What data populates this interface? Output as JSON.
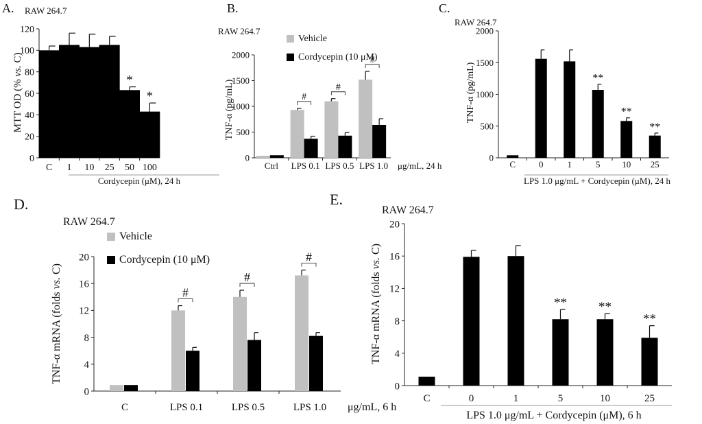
{
  "chart_data": [
    {
      "panel_label": "A.",
      "cell_line": "RAW 264.7",
      "type": "bar",
      "ylabel": [
        "MTT OD (% ",
        "vs.",
        " C)"
      ],
      "ylim": [
        0,
        120
      ],
      "yticks": [
        0,
        20,
        40,
        60,
        80,
        100,
        120
      ],
      "categories": [
        "C",
        "1",
        "10",
        "25",
        "50",
        "100"
      ],
      "series": [
        {
          "color": "#000000",
          "values": [
            100,
            105,
            103,
            105,
            63,
            43
          ],
          "errors": [
            4,
            11,
            12,
            8,
            3,
            8
          ]
        }
      ],
      "annotations": [
        "",
        "",
        "",
        "",
        "*",
        "*"
      ],
      "group_label": "Cordycepin (μM), 24 h",
      "group_start": 1
    },
    {
      "panel_label": "B.",
      "cell_line": "RAW 264.7",
      "type": "bar",
      "ylabel": [
        "TNF-α (pg/mL)"
      ],
      "ylim": [
        0,
        2000
      ],
      "yticks": [
        0,
        500,
        1000,
        1500,
        2000
      ],
      "categories": [
        "Ctrl",
        "LPS 0.1",
        "LPS 0.5",
        "LPS 1.0"
      ],
      "unit_label": "μg/mL, 24 h",
      "series": [
        {
          "name": "Vehicle",
          "color": "#c0c0c0",
          "values": [
            40,
            930,
            1100,
            1520
          ],
          "errors": [
            0,
            30,
            50,
            160
          ]
        },
        {
          "name": "Cordycepin (10 μM)",
          "color": "#000000",
          "values": [
            50,
            370,
            430,
            640
          ],
          "errors": [
            0,
            50,
            60,
            120
          ]
        }
      ],
      "annotations": [
        "",
        "#",
        "#",
        "#"
      ]
    },
    {
      "panel_label": "C.",
      "cell_line": "RAW 264.7",
      "type": "bar",
      "ylabel": [
        "TNF-α (pg/mL)"
      ],
      "ylim": [
        0,
        2000
      ],
      "yticks": [
        0,
        500,
        1000,
        1500,
        2000
      ],
      "categories": [
        "C",
        "0",
        "1",
        "5",
        "10",
        "25"
      ],
      "series": [
        {
          "color": "#000000",
          "values": [
            40,
            1560,
            1520,
            1070,
            580,
            350
          ],
          "errors": [
            0,
            140,
            180,
            90,
            50,
            40
          ]
        }
      ],
      "annotations": [
        "",
        "",
        "",
        "**",
        "**",
        "**"
      ],
      "group_label": "LPS 1.0  μg/mL + Cordycepin (μM), 24 h",
      "group_start": 1
    },
    {
      "panel_label": "D.",
      "cell_line": "RAW 264.7",
      "type": "bar",
      "ylabel": [
        "TNF-α mRNA (folds ",
        "vs.",
        " C)"
      ],
      "ylim": [
        0,
        20
      ],
      "yticks": [
        0,
        4,
        8,
        12,
        16,
        20
      ],
      "categories": [
        "C",
        "LPS 0.1",
        "LPS 0.5",
        "LPS 1.0"
      ],
      "unit_label": "μg/mL, 6 h",
      "series": [
        {
          "name": "Vehicle",
          "color": "#c0c0c0",
          "values": [
            0.9,
            12,
            14,
            17.2
          ],
          "errors": [
            0,
            0.7,
            1.0,
            0.8
          ]
        },
        {
          "name": "Cordycepin (10 μM)",
          "color": "#000000",
          "values": [
            0.9,
            6,
            7.6,
            8.2
          ],
          "errors": [
            0,
            0.5,
            1.1,
            0.5
          ]
        }
      ],
      "annotations": [
        "",
        "#",
        "#",
        "#"
      ]
    },
    {
      "panel_label": "E.",
      "cell_line": "RAW 264.7",
      "type": "bar",
      "ylabel": [
        "TNF-α mRNA (folds ",
        "vs.",
        " C)"
      ],
      "ylim": [
        0,
        20
      ],
      "yticks": [
        0,
        4,
        8,
        12,
        16,
        20
      ],
      "categories": [
        "C",
        "0",
        "1",
        "5",
        "10",
        "25"
      ],
      "series": [
        {
          "color": "#000000",
          "values": [
            1.1,
            15.9,
            16,
            8.2,
            8.2,
            5.9
          ],
          "errors": [
            0,
            0.8,
            1.3,
            1.2,
            0.7,
            1.5
          ]
        }
      ],
      "annotations": [
        "",
        "",
        "",
        "**",
        "**",
        "**"
      ],
      "group_label": "LPS 1.0  μg/mL + Cordycepin (μM), 6 h",
      "group_start": 1
    }
  ]
}
